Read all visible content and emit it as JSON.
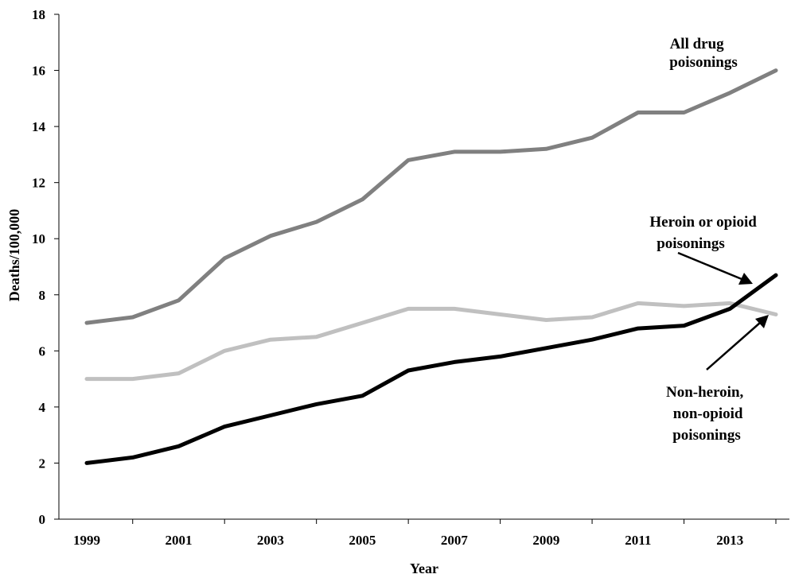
{
  "chart_data": {
    "type": "line",
    "x": [
      1999,
      2000,
      2001,
      2002,
      2003,
      2004,
      2005,
      2006,
      2007,
      2008,
      2009,
      2010,
      2011,
      2012,
      2013,
      2014
    ],
    "xlabel": "Year",
    "ylabel": "Deaths/100,000",
    "xlim": [
      1999,
      2014
    ],
    "ylim": [
      0,
      18
    ],
    "x_ticks": [
      "1999",
      "2001",
      "2003",
      "2005",
      "2007",
      "2009",
      "2011",
      "2013"
    ],
    "y_ticks": [
      "0",
      "2",
      "4",
      "6",
      "8",
      "10",
      "12",
      "14",
      "16",
      "18"
    ],
    "grid": false,
    "legend": "none",
    "series": [
      {
        "key": "all",
        "color": "#808080",
        "values": [
          7.0,
          7.2,
          7.8,
          9.3,
          10.1,
          10.6,
          11.4,
          12.8,
          13.1,
          13.1,
          13.2,
          13.6,
          14.5,
          14.5,
          15.2,
          16.0
        ]
      },
      {
        "key": "nonopioid",
        "color": "#c0c0c0",
        "values": [
          5.0,
          5.0,
          5.2,
          6.0,
          6.4,
          6.5,
          7.0,
          7.5,
          7.5,
          7.3,
          7.1,
          7.2,
          7.7,
          7.6,
          7.7,
          7.3
        ]
      },
      {
        "key": "opioid",
        "color": "#000000",
        "values": [
          2.0,
          2.2,
          2.6,
          3.3,
          3.7,
          4.1,
          4.4,
          5.3,
          5.6,
          5.8,
          6.1,
          6.4,
          6.8,
          6.9,
          7.5,
          8.7
        ]
      }
    ],
    "annotations": [
      {
        "key": "all",
        "lines": [
          "All drug",
          "poisonings"
        ]
      },
      {
        "key": "opioid",
        "lines": [
          "Heroin or opioid",
          "poisonings"
        ]
      },
      {
        "key": "nonopioid",
        "lines": [
          "Non-heroin,",
          "non-opioid",
          "poisonings"
        ]
      }
    ]
  }
}
